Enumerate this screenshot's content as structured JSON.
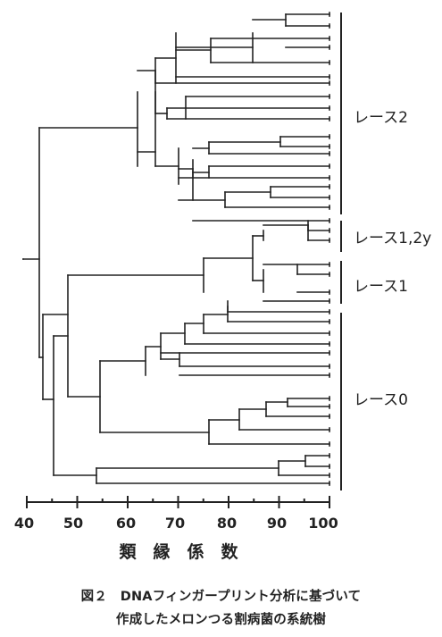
{
  "figure": {
    "axis": {
      "ticks": [
        "40",
        "50",
        "60",
        "70",
        "80",
        "90",
        "100"
      ],
      "label": "類　縁　係　数"
    },
    "groups": [
      {
        "id": "race2",
        "label": "レース2"
      },
      {
        "id": "race12y",
        "label": "レース1,2y"
      },
      {
        "id": "race1",
        "label": "レース1"
      },
      {
        "id": "race0",
        "label": "レース0"
      }
    ],
    "caption_line1": "図２　DNAフィンガープリント分析に基づいて",
    "caption_line2": "作成したメロンつる割病菌の系統樹",
    "line_color": "#222222"
  }
}
